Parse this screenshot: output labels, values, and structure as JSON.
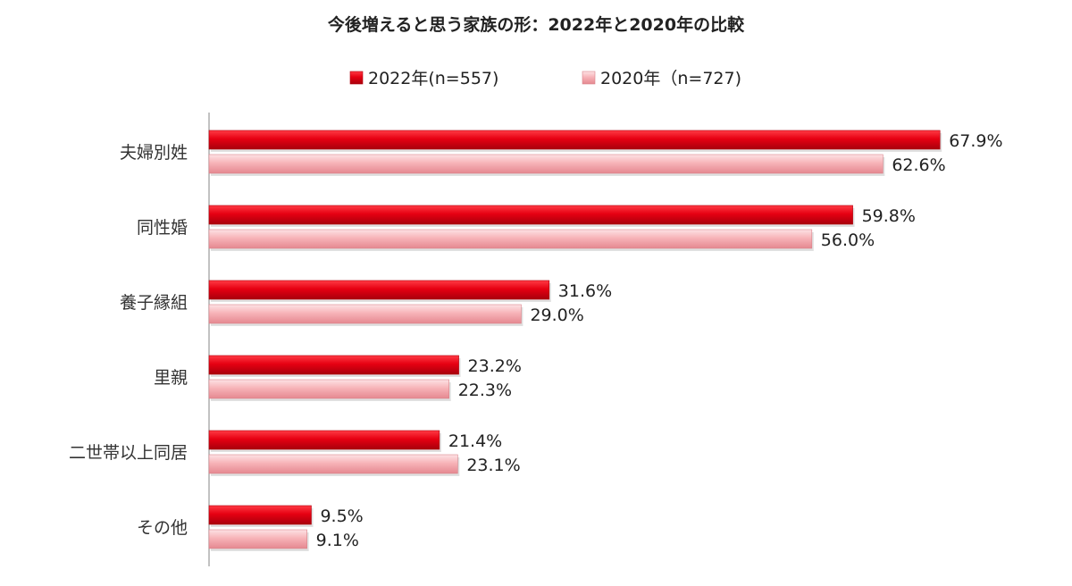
{
  "chart_data": {
    "type": "bar",
    "orientation": "horizontal",
    "title": "今後増えると思う家族の形：2022年と2020年の比較",
    "categories": [
      "夫婦別姓",
      "同性婚",
      "養子縁組",
      "里親",
      "二世帯以上同居",
      "その他"
    ],
    "series": [
      {
        "name": "2022年(n=557)",
        "values": [
          67.9,
          59.8,
          31.6,
          23.2,
          21.4,
          9.5
        ],
        "labels": [
          "67.9%",
          "59.8%",
          "31.6%",
          "23.2%",
          "21.4%",
          "9.5%"
        ],
        "color": "#e60012"
      },
      {
        "name": "2020年（n=727)",
        "values": [
          62.6,
          56.0,
          29.0,
          22.3,
          23.1,
          9.1
        ],
        "labels": [
          "62.6%",
          "56.0%",
          "29.0%",
          "22.3%",
          "23.1%",
          "9.1%"
        ],
        "color": "#f7b3b8"
      }
    ],
    "unit": "%",
    "xlim": [
      0,
      70
    ],
    "grid": false,
    "legend": "top-center"
  }
}
